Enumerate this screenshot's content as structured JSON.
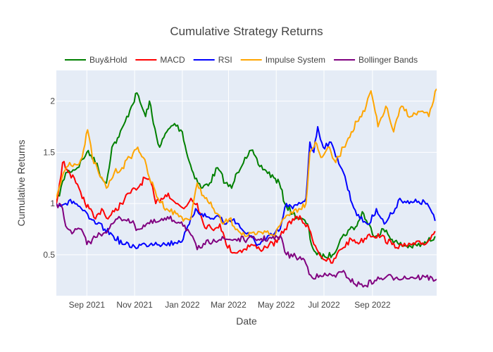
{
  "chart_data": {
    "type": "line",
    "title": "Cumulative Strategy Returns",
    "xlabel": "Date",
    "ylabel": "Cumulative Returns",
    "xlim": [
      "2021-07-24",
      "2022-11-22"
    ],
    "ylim": [
      0.1,
      2.3
    ],
    "grid": true,
    "legend_position": "top",
    "plot_bgcolor": "#e5ecf6",
    "x_ticks": [
      {
        "value": "2021-09-01",
        "label": "Sep 2021"
      },
      {
        "value": "2021-11-01",
        "label": "Nov 2021"
      },
      {
        "value": "2022-01-01",
        "label": "Jan 2022"
      },
      {
        "value": "2022-03-01",
        "label": "Mar 2022"
      },
      {
        "value": "2022-05-01",
        "label": "May 2022"
      },
      {
        "value": "2022-07-01",
        "label": "Jul 2022"
      },
      {
        "value": "2022-09-01",
        "label": "Sep 2022"
      }
    ],
    "y_ticks": [
      {
        "value": 0.5,
        "label": "0.5"
      },
      {
        "value": 1.0,
        "label": "1"
      },
      {
        "value": 1.5,
        "label": "1.5"
      },
      {
        "value": 2.0,
        "label": "2"
      }
    ],
    "series": [
      {
        "name": "Buy&Hold",
        "color": "#008000",
        "points": [
          [
            "2021-07-24",
            1.0
          ],
          [
            "2021-08-05",
            1.3
          ],
          [
            "2021-08-20",
            1.35
          ],
          [
            "2021-09-01",
            1.5
          ],
          [
            "2021-09-10",
            1.45
          ],
          [
            "2021-09-20",
            1.25
          ],
          [
            "2021-09-26",
            1.2
          ],
          [
            "2021-10-03",
            1.55
          ],
          [
            "2021-10-12",
            1.65
          ],
          [
            "2021-10-20",
            1.8
          ],
          [
            "2021-10-28",
            1.95
          ],
          [
            "2021-11-04",
            2.08
          ],
          [
            "2021-11-10",
            1.95
          ],
          [
            "2021-11-15",
            1.85
          ],
          [
            "2021-11-20",
            2.0
          ],
          [
            "2021-11-25",
            1.78
          ],
          [
            "2021-12-03",
            1.55
          ],
          [
            "2021-12-12",
            1.7
          ],
          [
            "2021-12-22",
            1.78
          ],
          [
            "2022-01-01",
            1.7
          ],
          [
            "2022-01-08",
            1.45
          ],
          [
            "2022-01-15",
            1.3
          ],
          [
            "2022-01-25",
            1.15
          ],
          [
            "2022-02-05",
            1.2
          ],
          [
            "2022-02-15",
            1.35
          ],
          [
            "2022-02-25",
            1.2
          ],
          [
            "2022-03-05",
            1.15
          ],
          [
            "2022-03-12",
            1.3
          ],
          [
            "2022-03-22",
            1.45
          ],
          [
            "2022-03-30",
            1.52
          ],
          [
            "2022-04-08",
            1.38
          ],
          [
            "2022-04-18",
            1.32
          ],
          [
            "2022-04-28",
            1.25
          ],
          [
            "2022-05-05",
            1.2
          ],
          [
            "2022-05-12",
            1.0
          ],
          [
            "2022-05-22",
            0.9
          ],
          [
            "2022-06-01",
            0.85
          ],
          [
            "2022-06-10",
            0.8
          ],
          [
            "2022-06-15",
            0.6
          ],
          [
            "2022-06-22",
            0.5
          ],
          [
            "2022-07-02",
            0.48
          ],
          [
            "2022-07-12",
            0.5
          ],
          [
            "2022-07-22",
            0.65
          ],
          [
            "2022-08-03",
            0.75
          ],
          [
            "2022-08-12",
            0.78
          ],
          [
            "2022-08-19",
            0.92
          ],
          [
            "2022-08-26",
            0.8
          ],
          [
            "2022-09-05",
            0.68
          ],
          [
            "2022-09-15",
            0.75
          ],
          [
            "2022-09-26",
            0.65
          ],
          [
            "2022-10-05",
            0.6
          ],
          [
            "2022-10-20",
            0.58
          ],
          [
            "2022-11-05",
            0.6
          ],
          [
            "2022-11-20",
            0.68
          ]
        ]
      },
      {
        "name": "MACD",
        "color": "#ff0000",
        "points": [
          [
            "2021-07-24",
            1.0
          ],
          [
            "2021-08-01",
            1.4
          ],
          [
            "2021-08-10",
            1.3
          ],
          [
            "2021-08-18",
            1.2
          ],
          [
            "2021-08-26",
            1.05
          ],
          [
            "2021-09-04",
            0.95
          ],
          [
            "2021-09-12",
            0.85
          ],
          [
            "2021-09-20",
            0.95
          ],
          [
            "2021-09-28",
            0.85
          ],
          [
            "2021-10-06",
            0.92
          ],
          [
            "2021-10-15",
            1.0
          ],
          [
            "2021-10-25",
            1.1
          ],
          [
            "2021-11-05",
            1.15
          ],
          [
            "2021-11-14",
            1.25
          ],
          [
            "2021-11-22",
            1.2
          ],
          [
            "2021-11-28",
            1.0
          ],
          [
            "2021-12-05",
            1.05
          ],
          [
            "2021-12-14",
            1.1
          ],
          [
            "2021-12-24",
            1.0
          ],
          [
            "2022-01-03",
            0.95
          ],
          [
            "2022-01-12",
            1.05
          ],
          [
            "2022-01-20",
            1.0
          ],
          [
            "2022-01-28",
            0.8
          ],
          [
            "2022-02-08",
            0.75
          ],
          [
            "2022-02-18",
            0.8
          ],
          [
            "2022-02-26",
            0.6
          ],
          [
            "2022-03-08",
            0.52
          ],
          [
            "2022-03-20",
            0.55
          ],
          [
            "2022-03-30",
            0.6
          ],
          [
            "2022-04-10",
            0.55
          ],
          [
            "2022-04-22",
            0.6
          ],
          [
            "2022-05-02",
            0.62
          ],
          [
            "2022-05-12",
            0.75
          ],
          [
            "2022-05-22",
            0.85
          ],
          [
            "2022-06-02",
            0.85
          ],
          [
            "2022-06-12",
            0.75
          ],
          [
            "2022-06-22",
            0.55
          ],
          [
            "2022-07-02",
            0.45
          ],
          [
            "2022-07-12",
            0.42
          ],
          [
            "2022-07-22",
            0.55
          ],
          [
            "2022-08-05",
            0.65
          ],
          [
            "2022-08-16",
            0.62
          ],
          [
            "2022-08-28",
            0.7
          ],
          [
            "2022-09-12",
            0.68
          ],
          [
            "2022-09-26",
            0.6
          ],
          [
            "2022-10-10",
            0.58
          ],
          [
            "2022-10-25",
            0.6
          ],
          [
            "2022-11-10",
            0.62
          ],
          [
            "2022-11-20",
            0.73
          ]
        ]
      },
      {
        "name": "RSI",
        "color": "#0000ff",
        "points": [
          [
            "2021-07-24",
            1.0
          ],
          [
            "2021-08-05",
            1.0
          ],
          [
            "2021-08-15",
            1.02
          ],
          [
            "2021-08-25",
            0.95
          ],
          [
            "2021-09-04",
            0.85
          ],
          [
            "2021-09-14",
            0.8
          ],
          [
            "2021-09-24",
            0.75
          ],
          [
            "2021-10-05",
            0.68
          ],
          [
            "2021-10-18",
            0.6
          ],
          [
            "2021-11-01",
            0.58
          ],
          [
            "2021-11-15",
            0.6
          ],
          [
            "2021-11-28",
            0.62
          ],
          [
            "2021-12-10",
            0.6
          ],
          [
            "2021-12-22",
            0.62
          ],
          [
            "2022-01-02",
            0.65
          ],
          [
            "2022-01-10",
            0.8
          ],
          [
            "2022-01-18",
            0.95
          ],
          [
            "2022-01-26",
            0.9
          ],
          [
            "2022-02-06",
            0.85
          ],
          [
            "2022-02-16",
            0.88
          ],
          [
            "2022-02-26",
            0.8
          ],
          [
            "2022-03-08",
            0.85
          ],
          [
            "2022-03-18",
            0.75
          ],
          [
            "2022-03-28",
            0.68
          ],
          [
            "2022-04-08",
            0.6
          ],
          [
            "2022-04-18",
            0.65
          ],
          [
            "2022-04-28",
            0.7
          ],
          [
            "2022-05-06",
            0.75
          ],
          [
            "2022-05-14",
            1.0
          ],
          [
            "2022-05-22",
            0.95
          ],
          [
            "2022-06-01",
            1.0
          ],
          [
            "2022-06-08",
            1.05
          ],
          [
            "2022-06-13",
            1.6
          ],
          [
            "2022-06-18",
            1.5
          ],
          [
            "2022-06-23",
            1.75
          ],
          [
            "2022-06-30",
            1.55
          ],
          [
            "2022-07-08",
            1.6
          ],
          [
            "2022-07-18",
            1.45
          ],
          [
            "2022-07-26",
            1.3
          ],
          [
            "2022-08-06",
            1.0
          ],
          [
            "2022-08-16",
            0.85
          ],
          [
            "2022-08-28",
            0.8
          ],
          [
            "2022-09-06",
            0.95
          ],
          [
            "2022-09-16",
            0.8
          ],
          [
            "2022-09-26",
            0.9
          ],
          [
            "2022-10-06",
            1.05
          ],
          [
            "2022-10-18",
            1.0
          ],
          [
            "2022-10-30",
            1.02
          ],
          [
            "2022-11-10",
            1.0
          ],
          [
            "2022-11-20",
            0.83
          ]
        ]
      },
      {
        "name": "Impulse System",
        "color": "#ffa500",
        "points": [
          [
            "2021-07-24",
            1.05
          ],
          [
            "2021-08-02",
            1.3
          ],
          [
            "2021-08-10",
            1.4
          ],
          [
            "2021-08-18",
            1.38
          ],
          [
            "2021-08-26",
            1.45
          ],
          [
            "2021-09-02",
            1.72
          ],
          [
            "2021-09-08",
            1.45
          ],
          [
            "2021-09-16",
            1.3
          ],
          [
            "2021-09-26",
            1.15
          ],
          [
            "2021-10-06",
            1.3
          ],
          [
            "2021-10-16",
            1.35
          ],
          [
            "2021-10-26",
            1.45
          ],
          [
            "2021-11-05",
            1.55
          ],
          [
            "2021-11-12",
            1.45
          ],
          [
            "2021-11-20",
            1.25
          ],
          [
            "2021-12-01",
            1.05
          ],
          [
            "2021-12-12",
            0.95
          ],
          [
            "2021-12-24",
            0.9
          ],
          [
            "2022-01-04",
            0.85
          ],
          [
            "2022-01-12",
            0.85
          ],
          [
            "2022-01-20",
            1.2
          ],
          [
            "2022-01-30",
            1.05
          ],
          [
            "2022-02-10",
            0.95
          ],
          [
            "2022-02-22",
            0.8
          ],
          [
            "2022-03-02",
            0.85
          ],
          [
            "2022-03-12",
            0.75
          ],
          [
            "2022-03-24",
            0.68
          ],
          [
            "2022-04-06",
            0.7
          ],
          [
            "2022-04-18",
            0.72
          ],
          [
            "2022-04-30",
            0.7
          ],
          [
            "2022-05-10",
            0.85
          ],
          [
            "2022-05-20",
            0.92
          ],
          [
            "2022-05-30",
            0.95
          ],
          [
            "2022-06-08",
            1.0
          ],
          [
            "2022-06-13",
            1.5
          ],
          [
            "2022-06-20",
            1.6
          ],
          [
            "2022-06-27",
            1.45
          ],
          [
            "2022-07-06",
            1.55
          ],
          [
            "2022-07-16",
            1.4
          ],
          [
            "2022-07-26",
            1.55
          ],
          [
            "2022-08-05",
            1.7
          ],
          [
            "2022-08-12",
            1.8
          ],
          [
            "2022-08-22",
            1.9
          ],
          [
            "2022-08-30",
            2.1
          ],
          [
            "2022-09-08",
            1.75
          ],
          [
            "2022-09-18",
            1.95
          ],
          [
            "2022-09-28",
            1.7
          ],
          [
            "2022-10-08",
            1.95
          ],
          [
            "2022-10-20",
            1.85
          ],
          [
            "2022-11-02",
            1.9
          ],
          [
            "2022-11-12",
            1.85
          ],
          [
            "2022-11-22",
            2.12
          ]
        ]
      },
      {
        "name": "Bollinger Bands",
        "color": "#800080",
        "points": [
          [
            "2021-07-24",
            1.0
          ],
          [
            "2021-08-01",
            0.95
          ],
          [
            "2021-08-05",
            0.78
          ],
          [
            "2021-08-15",
            0.72
          ],
          [
            "2021-08-25",
            0.75
          ],
          [
            "2021-09-01",
            0.6
          ],
          [
            "2021-09-08",
            0.65
          ],
          [
            "2021-09-18",
            0.7
          ],
          [
            "2021-09-30",
            0.76
          ],
          [
            "2021-10-10",
            0.85
          ],
          [
            "2021-10-24",
            0.85
          ],
          [
            "2021-11-05",
            0.75
          ],
          [
            "2021-11-16",
            0.8
          ],
          [
            "2021-11-30",
            0.82
          ],
          [
            "2021-12-15",
            0.85
          ],
          [
            "2021-12-31",
            0.82
          ],
          [
            "2022-01-10",
            0.72
          ],
          [
            "2022-01-20",
            0.55
          ],
          [
            "2022-01-30",
            0.6
          ],
          [
            "2022-02-10",
            0.65
          ],
          [
            "2022-02-25",
            0.65
          ],
          [
            "2022-03-10",
            0.65
          ],
          [
            "2022-03-25",
            0.65
          ],
          [
            "2022-04-08",
            0.65
          ],
          [
            "2022-04-25",
            0.66
          ],
          [
            "2022-05-08",
            0.66
          ],
          [
            "2022-05-14",
            0.5
          ],
          [
            "2022-05-26",
            0.48
          ],
          [
            "2022-06-06",
            0.45
          ],
          [
            "2022-06-14",
            0.3
          ],
          [
            "2022-06-24",
            0.28
          ],
          [
            "2022-07-04",
            0.3
          ],
          [
            "2022-07-14",
            0.3
          ],
          [
            "2022-07-28",
            0.32
          ],
          [
            "2022-08-08",
            0.22
          ],
          [
            "2022-08-22",
            0.2
          ],
          [
            "2022-09-04",
            0.25
          ],
          [
            "2022-09-18",
            0.28
          ],
          [
            "2022-10-02",
            0.28
          ],
          [
            "2022-10-22",
            0.28
          ],
          [
            "2022-11-08",
            0.28
          ],
          [
            "2022-11-22",
            0.26
          ]
        ]
      }
    ]
  }
}
